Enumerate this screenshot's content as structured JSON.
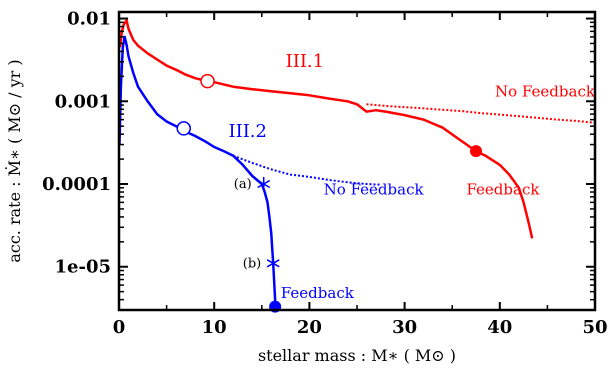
{
  "chart_data": {
    "type": "line",
    "title": "",
    "xlabel": "stellar mass :  M∗ ( M⊙ )",
    "ylabel": "acc. rate : Ṁ∗ ( M⊙ / yr  )",
    "xlim": [
      0,
      50
    ],
    "ylim": [
      3e-06,
      0.012
    ],
    "yscale": "log",
    "x_ticks": [
      0,
      10,
      20,
      30,
      40,
      50
    ],
    "x_tick_labels": [
      "0",
      "10",
      "20",
      "30",
      "40",
      "50"
    ],
    "y_ticks": [
      1e-05,
      0.0001,
      0.001,
      0.01
    ],
    "y_tick_labels": [
      "1e-05",
      "0.0001",
      "0.001",
      "0.01"
    ],
    "grid": false,
    "colors": {
      "red": "#ff0000",
      "blue": "#0000ff"
    },
    "series": [
      {
        "name": "III.1",
        "variant": "feedback",
        "color": "#ff0000",
        "style": "solid",
        "points": [
          [
            0.1,
            0.0045
          ],
          [
            0.3,
            0.007
          ],
          [
            0.5,
            0.0085
          ],
          [
            0.8,
            0.0095
          ],
          [
            1.0,
            0.0075
          ],
          [
            1.5,
            0.0055
          ],
          [
            2,
            0.0047
          ],
          [
            3,
            0.0038
          ],
          [
            4,
            0.0032
          ],
          [
            5,
            0.0027
          ],
          [
            6,
            0.0024
          ],
          [
            7,
            0.0021
          ],
          [
            8,
            0.0019
          ],
          [
            9,
            0.00178
          ],
          [
            10,
            0.0017
          ],
          [
            12,
            0.0015
          ],
          [
            14,
            0.0014
          ],
          [
            16,
            0.00132
          ],
          [
            18,
            0.00125
          ],
          [
            20,
            0.00118
          ],
          [
            22,
            0.00108
          ],
          [
            24,
            0.001
          ],
          [
            25,
            0.00092
          ],
          [
            26,
            0.00075
          ],
          [
            27,
            0.00078
          ],
          [
            28,
            0.00075
          ],
          [
            30,
            0.00068
          ],
          [
            32,
            0.0006
          ],
          [
            34,
            0.00048
          ],
          [
            36,
            0.00033
          ],
          [
            37.5,
            0.00025
          ],
          [
            38.5,
            0.00022
          ],
          [
            40,
            0.00017
          ],
          [
            41,
            0.00013
          ],
          [
            42,
            9e-05
          ],
          [
            42.5,
            6e-05
          ],
          [
            43,
            3.5e-05
          ],
          [
            43.4,
            2.2e-05
          ]
        ]
      },
      {
        "name": "III.1",
        "variant": "no-feedback",
        "color": "#ff0000",
        "style": "dotted",
        "points": [
          [
            26,
            0.00092
          ],
          [
            28,
            0.00088
          ],
          [
            30,
            0.00085
          ],
          [
            32,
            0.00082
          ],
          [
            34,
            0.00079
          ],
          [
            36,
            0.00076
          ],
          [
            38,
            0.00072
          ],
          [
            40,
            0.00069
          ],
          [
            42,
            0.00066
          ],
          [
            44,
            0.00063
          ],
          [
            46,
            0.0006
          ],
          [
            48,
            0.00058
          ],
          [
            50,
            0.00055
          ]
        ]
      },
      {
        "name": "III.2",
        "variant": "feedback",
        "color": "#0000ff",
        "style": "solid",
        "points": [
          [
            0.05,
            0.0003
          ],
          [
            0.2,
            0.0015
          ],
          [
            0.4,
            0.0045
          ],
          [
            0.6,
            0.006
          ],
          [
            0.8,
            0.0048
          ],
          [
            1.0,
            0.0035
          ],
          [
            1.5,
            0.0022
          ],
          [
            2,
            0.0015
          ],
          [
            3,
            0.001
          ],
          [
            4,
            0.0007
          ],
          [
            5,
            0.00057
          ],
          [
            6,
            0.0005
          ],
          [
            6.5,
            0.00047
          ],
          [
            7,
            0.00043
          ],
          [
            8,
            0.00038
          ],
          [
            9,
            0.00033
          ],
          [
            10,
            0.00028
          ],
          [
            11,
            0.00025
          ],
          [
            12,
            0.00022
          ],
          [
            13,
            0.00017
          ],
          [
            14,
            0.000125
          ],
          [
            15,
            0.0001
          ],
          [
            15.3,
            8e-05
          ],
          [
            15.6,
            6e-05
          ],
          [
            15.8,
            4e-05
          ],
          [
            16,
            2.5e-05
          ],
          [
            16.1,
            1.6e-05
          ],
          [
            16.2,
            1.1e-05
          ],
          [
            16.3,
            6.5e-06
          ],
          [
            16.4,
            4e-06
          ],
          [
            16.4,
            3.3e-06
          ]
        ]
      },
      {
        "name": "III.2",
        "variant": "no-feedback",
        "color": "#0000ff",
        "style": "dotted",
        "points": [
          [
            12,
            0.00022
          ],
          [
            14,
            0.00018
          ],
          [
            16,
            0.00015
          ],
          [
            18,
            0.00013
          ],
          [
            20,
            0.000122
          ],
          [
            22,
            0.000112
          ],
          [
            24,
            0.000105
          ],
          [
            26,
            0.0001
          ],
          [
            27.5,
            9.8e-05
          ]
        ]
      }
    ],
    "markers": [
      {
        "shape": "open-circle",
        "color": "#ff0000",
        "x": 9.3,
        "y": 0.00175
      },
      {
        "shape": "filled-circle",
        "color": "#ff0000",
        "x": 37.5,
        "y": 0.00025
      },
      {
        "shape": "open-circle",
        "color": "#0000ff",
        "x": 6.8,
        "y": 0.00047
      },
      {
        "shape": "asterisk",
        "color": "#0000ff",
        "x": 15.2,
        "y": 0.0001,
        "label": "(a)"
      },
      {
        "shape": "asterisk",
        "color": "#0000ff",
        "x": 16.2,
        "y": 1.1e-05,
        "label": "(b)"
      },
      {
        "shape": "filled-circle",
        "color": "#0000ff",
        "x": 16.4,
        "y": 3.3e-06
      }
    ],
    "annotations": [
      {
        "text": "III.1",
        "color": "#ff0000",
        "x": 17.5,
        "y": 0.0026,
        "size": "big"
      },
      {
        "text": "No Feedback",
        "color": "#ff0000",
        "x": 39.5,
        "y": 0.00115,
        "size": "normal"
      },
      {
        "text": "Feedback",
        "color": "#ff0000",
        "x": 36.5,
        "y": 7.5e-05,
        "size": "normal"
      },
      {
        "text": "III.2",
        "color": "#0000ff",
        "x": 11.5,
        "y": 0.00037,
        "size": "big"
      },
      {
        "text": "No Feedback",
        "color": "#0000ff",
        "x": 21.5,
        "y": 7.5e-05,
        "size": "normal"
      },
      {
        "text": "Feedback",
        "color": "#0000ff",
        "x": 17,
        "y": 4.2e-06,
        "size": "normal"
      }
    ]
  }
}
